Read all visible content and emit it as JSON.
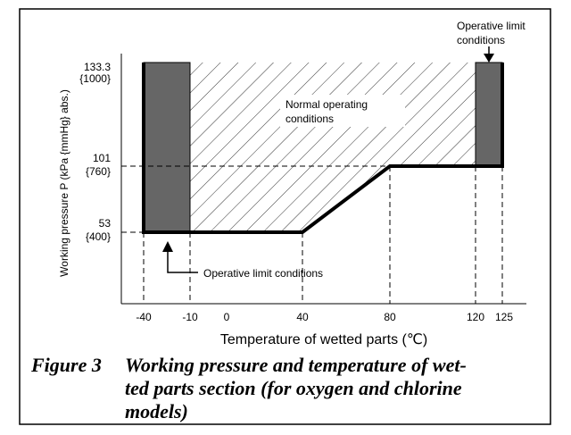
{
  "figure": {
    "y_axis_title": "Working pressure P (kPa {mmHg} abs.)",
    "y_labels": [
      [
        "133.3",
        "{1000}"
      ],
      [
        "101",
        "{760}"
      ],
      [
        "53",
        "{400}"
      ]
    ],
    "x_labels": [
      "-40",
      "-10",
      "0",
      "40",
      "80",
      "120",
      "125"
    ],
    "x_axis_title": "Temperature of wetted parts (℃)",
    "normal_label": [
      "Normal operating",
      "conditions"
    ],
    "limit_label_top": [
      "Operative limit",
      "conditions"
    ],
    "limit_label_bottom": "Operative limit conditions",
    "caption_number": "Figure 3",
    "caption_lines": [
      "Working pressure and temperature of wet-",
      "ted parts section (for oxygen and chlorine",
      "models)"
    ]
  }
}
